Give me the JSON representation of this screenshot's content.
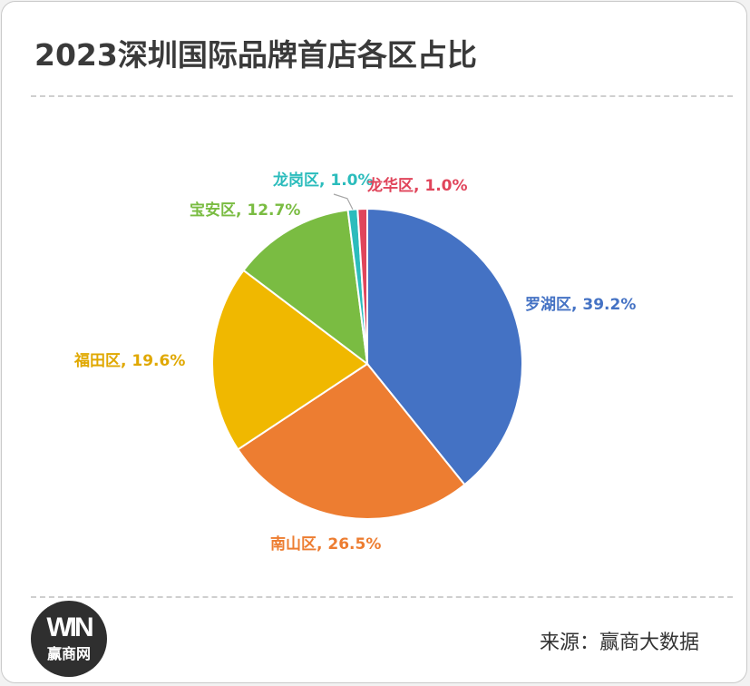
{
  "page": {
    "title": "2023深圳国际品牌首店各区占比",
    "source": "来源：赢商大数据",
    "logo": {
      "mark": "WIN",
      "text": "赢商网"
    }
  },
  "chart_data": {
    "type": "pie",
    "title": "2023深圳国际品牌首店各区占比",
    "unit": "%",
    "slices": [
      {
        "name": "罗湖区",
        "value": 39.2,
        "color": "#4472c4"
      },
      {
        "name": "南山区",
        "value": 26.5,
        "color": "#ed7d31"
      },
      {
        "name": "福田区",
        "value": 19.6,
        "color": "#f0b800"
      },
      {
        "name": "宝安区",
        "value": 12.7,
        "color": "#7abc42"
      },
      {
        "name": "龙岗区",
        "value": 1.0,
        "color": "#2bbcbc"
      },
      {
        "name": "龙华区",
        "value": 1.0,
        "color": "#e0455b"
      }
    ],
    "labels": [
      "罗湖区, 39.2%",
      "南山区, 26.5%",
      "福田区, 19.6%",
      "宝安区, 12.7%",
      "龙岗区, 1.0%",
      "龙华区, 1.0%"
    ],
    "start_angle_deg": 0,
    "direction": "clockwise"
  }
}
